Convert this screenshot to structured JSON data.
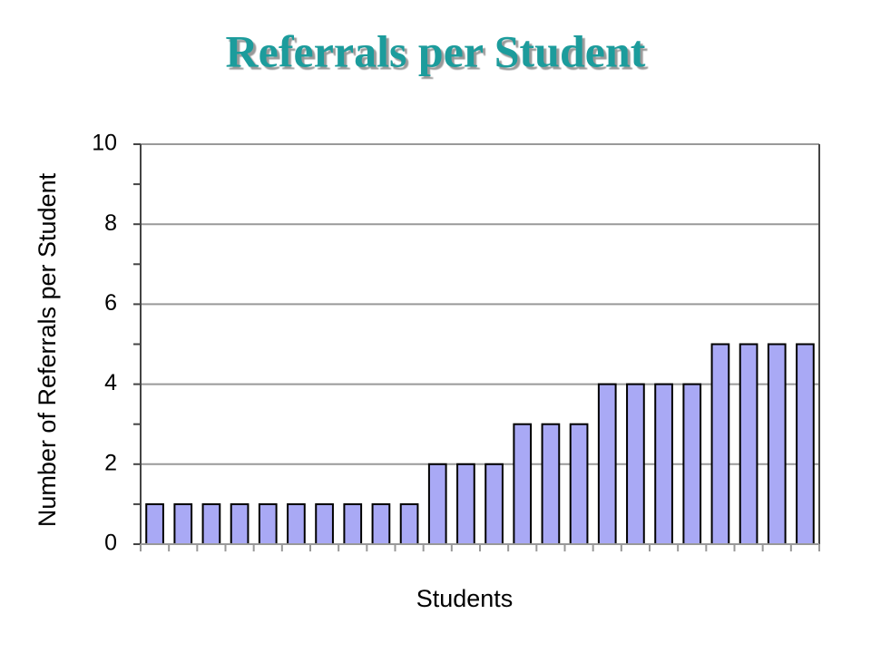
{
  "chart_data": {
    "type": "bar",
    "title": "Referrals per Student",
    "x_label": "Students",
    "y_label": "Number of Referrals per Student",
    "categories": [
      null,
      null,
      null,
      null,
      null,
      null,
      null,
      null,
      null,
      null,
      null,
      null,
      null,
      null,
      null,
      null,
      null,
      null,
      null,
      null,
      null,
      null,
      null,
      null
    ],
    "values": [
      1,
      1,
      1,
      1,
      1,
      1,
      1,
      1,
      1,
      1,
      2,
      2,
      2,
      3,
      3,
      3,
      4,
      4,
      4,
      4,
      5,
      5,
      5,
      5
    ],
    "color": "#a9a9f5",
    "ylim": [
      0,
      10
    ],
    "yticks": [
      0,
      2,
      4,
      6,
      8,
      10
    ],
    "grid": true
  }
}
